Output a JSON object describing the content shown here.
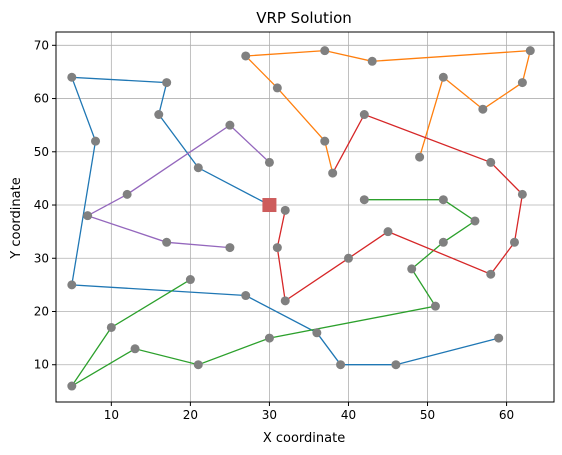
{
  "chart_data": {
    "type": "line",
    "title": "VRP Solution",
    "xlabel": "X coordinate",
    "ylabel": "Y coordinate",
    "xlim": [
      3,
      66
    ],
    "ylim": [
      3,
      72.5
    ],
    "xticks": [
      10,
      20,
      30,
      40,
      50,
      60
    ],
    "yticks": [
      10,
      20,
      30,
      40,
      50,
      60,
      70
    ],
    "grid": true,
    "depot": {
      "x": 30,
      "y": 40,
      "color": "#cd5c5c",
      "marker": "square"
    },
    "customer_color": "#808080",
    "series": [
      {
        "color": "#1f77b4",
        "points": [
          [
            30,
            40
          ],
          [
            21,
            47
          ],
          [
            16,
            57
          ],
          [
            17,
            63
          ],
          [
            5,
            64
          ],
          [
            8,
            52
          ],
          [
            5,
            25
          ],
          [
            27,
            23
          ],
          [
            36,
            16
          ],
          [
            39,
            10
          ],
          [
            46,
            10
          ],
          [
            59,
            15
          ]
        ]
      },
      {
        "color": "#ff7f0e",
        "points": [
          [
            38,
            46
          ],
          [
            37,
            52
          ],
          [
            31,
            62
          ],
          [
            27,
            68
          ],
          [
            37,
            69
          ],
          [
            43,
            67
          ],
          [
            63,
            69
          ],
          [
            62,
            63
          ],
          [
            57,
            58
          ],
          [
            52,
            64
          ],
          [
            49,
            49
          ]
        ]
      },
      {
        "color": "#2ca02c",
        "points": [
          [
            42,
            41
          ],
          [
            52,
            41
          ],
          [
            56,
            37
          ],
          [
            52,
            33
          ],
          [
            48,
            28
          ],
          [
            51,
            21
          ],
          [
            30,
            15
          ],
          [
            21,
            10
          ],
          [
            13,
            13
          ],
          [
            5,
            6
          ],
          [
            10,
            17
          ],
          [
            20,
            26
          ]
        ]
      },
      {
        "color": "#d62728",
        "points": [
          [
            32,
            39
          ],
          [
            31,
            32
          ],
          [
            32,
            22
          ],
          [
            40,
            30
          ],
          [
            45,
            35
          ],
          [
            58,
            27
          ],
          [
            61,
            33
          ],
          [
            62,
            42
          ],
          [
            58,
            48
          ],
          [
            42,
            57
          ],
          [
            38,
            46
          ]
        ]
      },
      {
        "color": "#9467bd",
        "points": [
          [
            30,
            48
          ],
          [
            25,
            55
          ],
          [
            12,
            42
          ],
          [
            7,
            38
          ],
          [
            17,
            33
          ],
          [
            25,
            32
          ]
        ]
      }
    ]
  }
}
